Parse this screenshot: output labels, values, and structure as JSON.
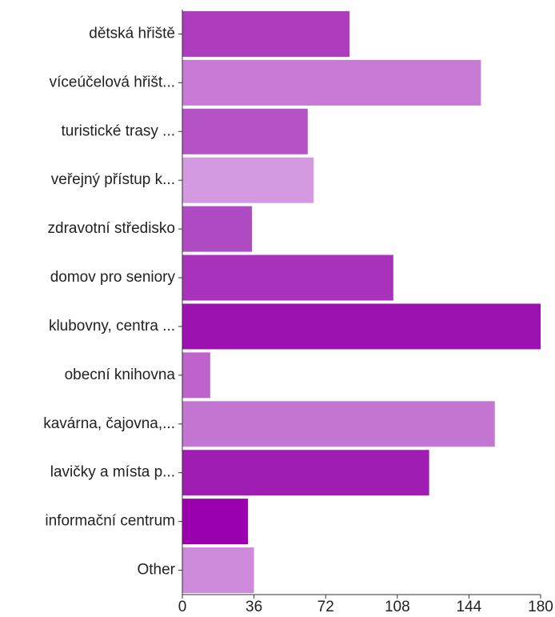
{
  "chart_data": {
    "type": "bar",
    "orientation": "horizontal",
    "categories": [
      "dětská hřiště",
      "víceúčelová hřišt...",
      "turistické trasy ...",
      "veřejný přístup k...",
      "zdravotní středisko",
      "domov pro seniory",
      "klubovny, centra ...",
      "obecní knihovna",
      "kavárna, čajovna,...",
      "lavičky a místa p...",
      "informační centrum",
      "Other"
    ],
    "values": [
      84,
      150,
      63,
      66,
      35,
      106,
      180,
      14,
      157,
      124,
      33,
      36
    ],
    "colors": [
      "#ad3dbd",
      "#c77ad5",
      "#b452c6",
      "#d49ae0",
      "#b04cc3",
      "#a832bb",
      "#9c12b0",
      "#bd63cb",
      "#c377d3",
      "#a01db3",
      "#9a00ad",
      "#ce8bdb"
    ],
    "title": "",
    "xlabel": "",
    "ylabel": "",
    "xlim": [
      0,
      180
    ],
    "xticks": [
      "0",
      "36",
      "72",
      "108",
      "144",
      "180"
    ],
    "grid": false,
    "legend": "none"
  }
}
